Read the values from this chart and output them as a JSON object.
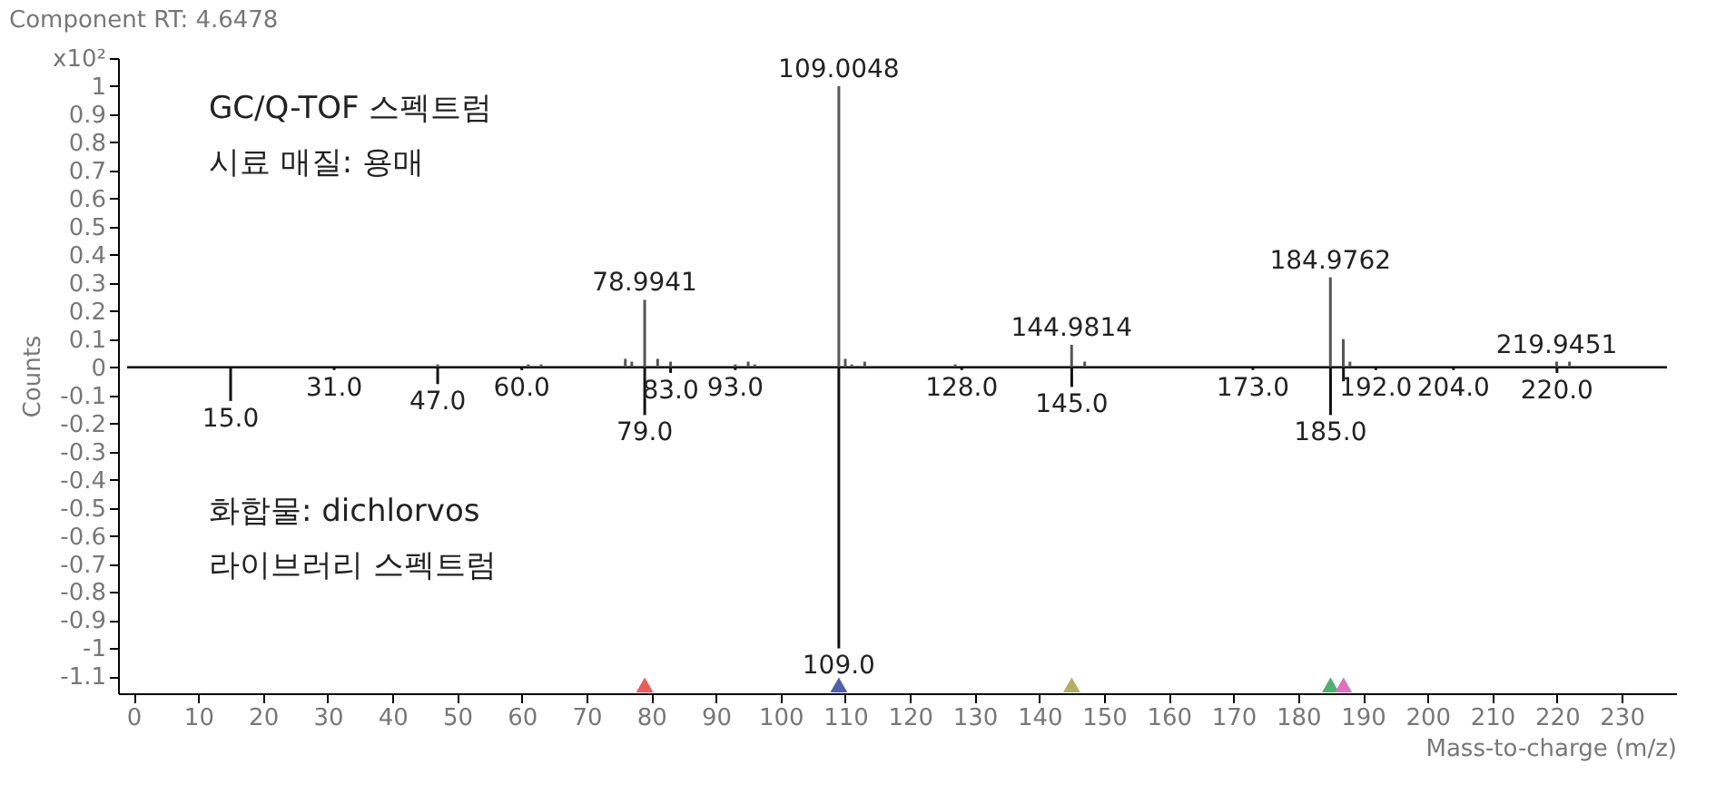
{
  "chart_data": {
    "type": "bar",
    "title": "Component RT: 4.6478",
    "xlabel": "Mass-to-charge (m/z)",
    "ylabel": "Counts",
    "xlim": [
      -1,
      237
    ],
    "xticks": [
      0,
      10,
      20,
      30,
      40,
      50,
      60,
      70,
      80,
      90,
      100,
      110,
      120,
      130,
      140,
      150,
      160,
      170,
      180,
      190,
      200,
      210,
      220,
      230
    ],
    "ylim": [
      -1.16,
      1.1
    ],
    "yticks": [
      -1.1,
      -1,
      -0.9,
      -0.8,
      -0.7,
      -0.6,
      -0.5,
      -0.4,
      -0.3,
      -0.2,
      -0.1,
      0,
      0.1,
      0.2,
      0.3,
      0.4,
      0.5,
      0.6,
      0.7,
      0.8,
      0.9,
      1,
      {
        "value": 1.1,
        "label": "x10²"
      }
    ],
    "grid": false,
    "ref_lines": [
      {
        "axis": "y",
        "value": 0,
        "color": "#000000"
      }
    ],
    "series": [
      {
        "color": "#555555",
        "x": [
          47.0,
          61.0,
          63.0,
          76.0,
          77.0,
          78.9941,
          81.0,
          83.0,
          93.0,
          95.0,
          96.0,
          109.0048,
          110.0,
          111.0,
          113.0,
          127.0,
          144.9814,
          147.0,
          184.9762,
          186.97,
          188.0,
          219.9451,
          221.94
        ],
        "values": [
          0.01,
          0.01,
          0.01,
          0.03,
          0.02,
          0.24,
          0.03,
          0.02,
          0.01,
          0.02,
          0.01,
          1.0,
          0.03,
          0.01,
          0.02,
          0.01,
          0.08,
          0.02,
          0.32,
          0.1,
          0.02,
          0.02,
          0.02
        ]
      },
      {
        "color": "#111111",
        "x": [
          15.0,
          31.0,
          47.0,
          60.0,
          79.0,
          83.0,
          93.0,
          109.0,
          128.0,
          145.0,
          173.0,
          185.0,
          187.0,
          192.0,
          204.0,
          220.0
        ],
        "values": [
          -0.12,
          -0.01,
          -0.06,
          -0.01,
          -0.17,
          -0.02,
          -0.01,
          -1.0,
          -0.01,
          -0.07,
          -0.01,
          -0.17,
          -0.05,
          -0.01,
          -0.01,
          -0.02
        ]
      },
      {
        "type": "scatter",
        "marker": "triangle",
        "x": [
          79.0,
          109.0,
          145.0,
          185.0,
          187.0
        ],
        "values": [
          -1.13,
          -1.13,
          -1.13,
          -1.13,
          -1.13
        ],
        "colors": [
          "#f05a5a",
          "#5060b0",
          "#b0b060",
          "#50b070",
          "#e070c0"
        ]
      }
    ],
    "annotations": [
      "GC/Q-TOF 스펙트럼",
      "시료 매질: 용매",
      "화합물: dichlorvos",
      "라이브러리 스펙트럼",
      {
        "text": "109.0048",
        "x": 109.0048,
        "y": 1.0
      },
      {
        "text": "78.9941",
        "x": 78.9941,
        "y": 0.24
      },
      {
        "text": "144.9814",
        "x": 144.9814,
        "y": 0.08
      },
      {
        "text": "184.9762",
        "x": 184.9762,
        "y": 0.32
      },
      {
        "text": "219.9451",
        "x": 219.9451,
        "y": 0.02
      },
      {
        "text": "15.0",
        "x": 15.0,
        "y": -0.12
      },
      {
        "text": "31.0",
        "x": 31.0,
        "y": -0.01
      },
      {
        "text": "47.0",
        "x": 47.0,
        "y": -0.06
      },
      {
        "text": "60.0",
        "x": 60.0,
        "y": -0.01
      },
      {
        "text": "79.0",
        "x": 79.0,
        "y": -0.17
      },
      {
        "text": "83.0",
        "x": 83.0,
        "y": -0.02
      },
      {
        "text": "93.0",
        "x": 93.0,
        "y": -0.01
      },
      {
        "text": "109.0",
        "x": 109.0,
        "y": -1.0
      },
      {
        "text": "128.0",
        "x": 128.0,
        "y": -0.01
      },
      {
        "text": "145.0",
        "x": 145.0,
        "y": -0.07
      },
      {
        "text": "173.0",
        "x": 173.0,
        "y": -0.01
      },
      {
        "text": "185.0",
        "x": 185.0,
        "y": -0.17
      },
      {
        "text": "192.0",
        "x": 192.0,
        "y": -0.01
      },
      {
        "text": "204.0",
        "x": 204.0,
        "y": -0.01
      },
      {
        "text": "220.0",
        "x": 220.0,
        "y": -0.02
      }
    ]
  }
}
